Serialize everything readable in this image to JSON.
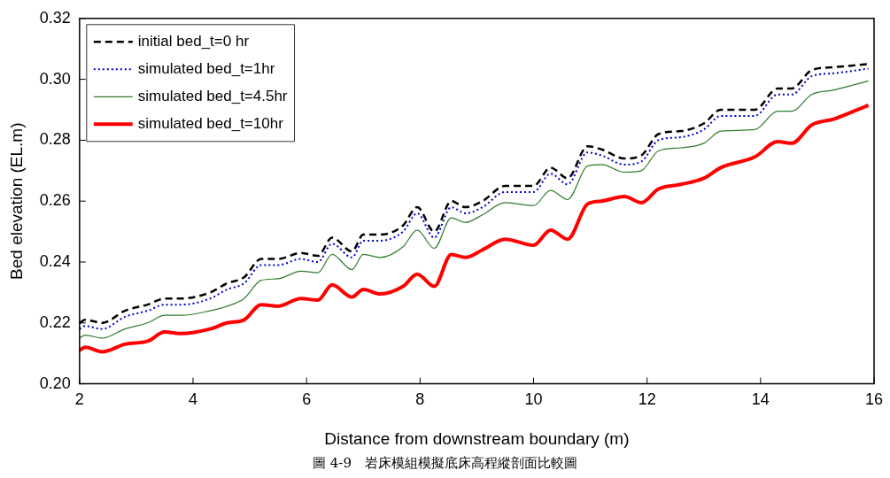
{
  "chart_data": {
    "type": "line",
    "xlabel": "Distance from downstream boundary (m)",
    "ylabel": "Bed elevation (EL.m)",
    "annotations": [
      "圖 4-9　岩床模組模擬底床高程縱剖面比較圖"
    ],
    "x": [
      2,
      2.1,
      2.4,
      2.8,
      3.2,
      3.5,
      3.8,
      4.3,
      4.6,
      4.9,
      5.2,
      5.5,
      5.9,
      6.2,
      6.45,
      6.8,
      7.0,
      7.3,
      7.7,
      7.95,
      8.25,
      8.55,
      8.8,
      9.1,
      9.5,
      10.0,
      10.3,
      10.6,
      10.95,
      11.2,
      11.6,
      11.9,
      12.2,
      12.6,
      13.0,
      13.3,
      13.9,
      14.3,
      14.55,
      14.9,
      15.3,
      15.9
    ],
    "series": [
      {
        "name": "initial bed_t=0 hr",
        "color": "#000000",
        "line_style": "dashed",
        "values": [
          0.22,
          0.221,
          0.22,
          0.224,
          0.226,
          0.228,
          0.228,
          0.23,
          0.233,
          0.235,
          0.241,
          0.241,
          0.243,
          0.242,
          0.248,
          0.2435,
          0.249,
          0.249,
          0.252,
          0.258,
          0.25,
          0.26,
          0.258,
          0.26,
          0.265,
          0.265,
          0.271,
          0.2675,
          0.278,
          0.277,
          0.274,
          0.275,
          0.282,
          0.283,
          0.2855,
          0.29,
          0.29,
          0.297,
          0.297,
          0.303,
          0.304,
          0.305
        ]
      },
      {
        "name": "simulated bed_t=1hr",
        "color": "#0000cc",
        "line_style": "dotted",
        "values": [
          0.218,
          0.219,
          0.218,
          0.222,
          0.224,
          0.226,
          0.226,
          0.228,
          0.231,
          0.233,
          0.239,
          0.239,
          0.241,
          0.24,
          0.246,
          0.2415,
          0.247,
          0.247,
          0.25,
          0.256,
          0.248,
          0.258,
          0.256,
          0.258,
          0.263,
          0.263,
          0.269,
          0.2655,
          0.276,
          0.275,
          0.272,
          0.273,
          0.28,
          0.281,
          0.2835,
          0.288,
          0.288,
          0.295,
          0.295,
          0.301,
          0.302,
          0.3035
        ]
      },
      {
        "name": "simulated bed_t=4.5hr",
        "color": "#2e7d2e",
        "line_style": "solid",
        "values": [
          0.215,
          0.216,
          0.215,
          0.218,
          0.22,
          0.2225,
          0.2225,
          0.224,
          0.2255,
          0.228,
          0.234,
          0.2345,
          0.237,
          0.2365,
          0.2425,
          0.2375,
          0.2425,
          0.2415,
          0.245,
          0.2505,
          0.2445,
          0.2545,
          0.253,
          0.2555,
          0.2595,
          0.2585,
          0.2635,
          0.2605,
          0.2715,
          0.272,
          0.2695,
          0.27,
          0.2765,
          0.2775,
          0.279,
          0.283,
          0.2835,
          0.2895,
          0.2895,
          0.295,
          0.2965,
          0.2995
        ]
      },
      {
        "name": "simulated bed_t=10hr",
        "color": "#ff0000",
        "line_style": "solid",
        "values": [
          0.211,
          0.212,
          0.2105,
          0.213,
          0.214,
          0.217,
          0.2165,
          0.218,
          0.22,
          0.221,
          0.226,
          0.2255,
          0.228,
          0.2275,
          0.2325,
          0.2285,
          0.231,
          0.2295,
          0.232,
          0.236,
          0.232,
          0.2425,
          0.2415,
          0.244,
          0.2475,
          0.2455,
          0.2505,
          0.2475,
          0.259,
          0.26,
          0.2615,
          0.2595,
          0.264,
          0.2655,
          0.2675,
          0.271,
          0.2745,
          0.2795,
          0.279,
          0.285,
          0.287,
          0.2915
        ]
      }
    ],
    "xlim": [
      2,
      16
    ],
    "xticks": [
      2,
      4,
      6,
      8,
      10,
      12,
      14,
      16
    ],
    "ylim": [
      0.2,
      0.32
    ],
    "yticks": [
      {
        "value": 0.2,
        "label": "0.20"
      },
      {
        "value": 0.22,
        "label": "0.22"
      },
      {
        "value": 0.24,
        "label": "0.24"
      },
      {
        "value": 0.26,
        "label": "0.26"
      },
      {
        "value": 0.28,
        "label": "0.28"
      },
      {
        "value": 0.3,
        "label": "0.30"
      },
      {
        "value": 0.32,
        "label": "0.32"
      }
    ],
    "legend": "top left",
    "marker": "none"
  }
}
